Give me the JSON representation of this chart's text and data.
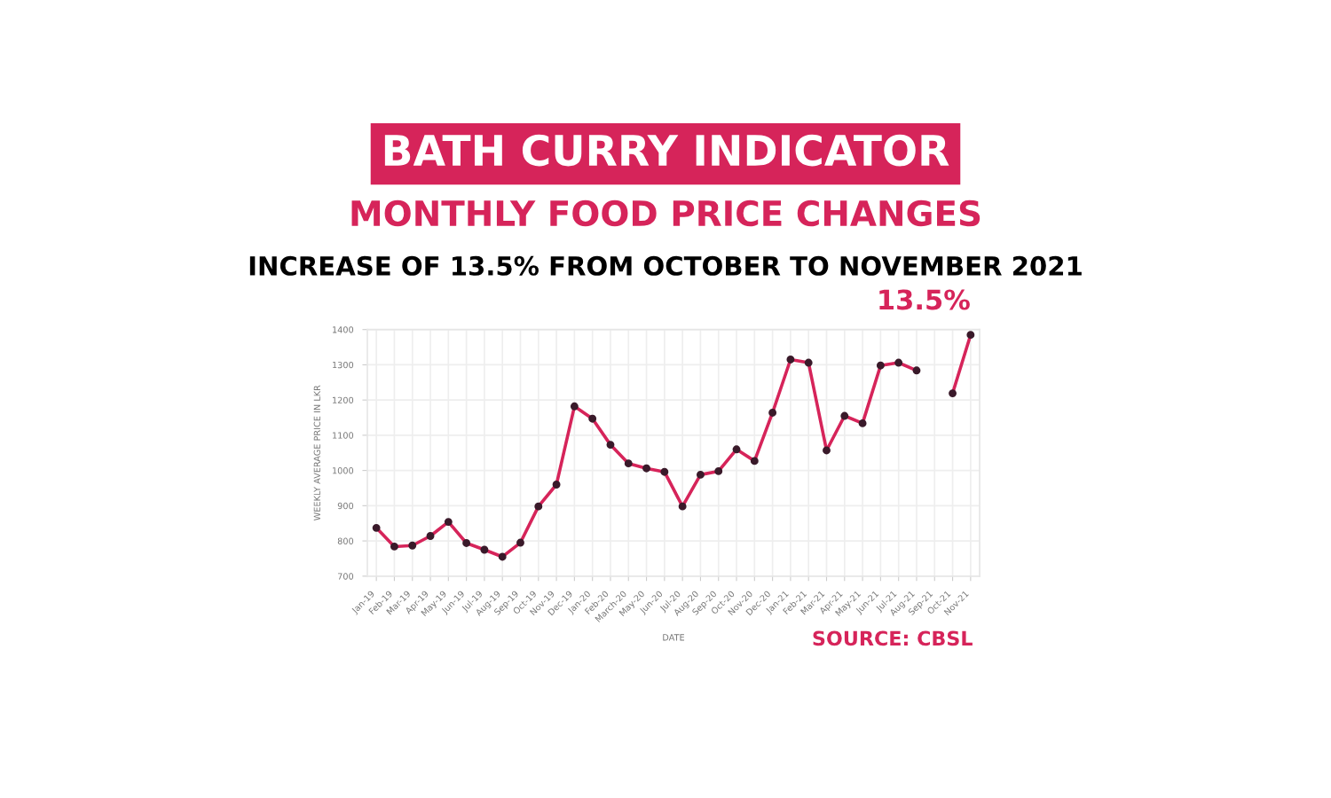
{
  "chart_data": {
    "type": "line",
    "title": "BATH CURRY INDICATOR",
    "subtitle": "MONTHLY FOOD PRICE CHANGES",
    "xlabel": "DATE",
    "ylabel": "WEEKLY AVERAGE PRICE IN LKR",
    "categories": [
      "Jan-19",
      "Feb-19",
      "Mar-19",
      "Apr-19",
      "May-19",
      "Jun-19",
      "Jul-19",
      "Aug-19",
      "Sep-19",
      "Oct-19",
      "Nov-19",
      "Dec-19",
      "Jan-20",
      "Feb-20",
      "March-20",
      "May-20",
      "Jun-20",
      "Jul-20",
      "Aug-20",
      "Sep-20",
      "Oct-20",
      "Nov-20",
      "Dec-20",
      "Jan-21",
      "Feb-21",
      "Mar-21",
      "Apr-21",
      "May-21",
      "Jun-21",
      "Jul-21",
      "Aug-21",
      "Sep-21",
      "Oct-21",
      "Nov-21"
    ],
    "series": [
      {
        "color": "#d6245a",
        "values": [
          837,
          784,
          787,
          814,
          854,
          794,
          775,
          755,
          795,
          898,
          960,
          1182,
          1147,
          1073,
          1020,
          1006,
          996,
          898,
          988,
          998,
          1060,
          1027,
          1164,
          1315,
          1306,
          1057,
          1155,
          1134,
          1298,
          1306,
          1284,
          null,
          1219,
          1385
        ]
      }
    ],
    "ylim": [
      700,
      1400
    ],
    "yticks": [
      700,
      800,
      900,
      1000,
      1100,
      1200,
      1300,
      1400
    ],
    "grid": true,
    "marker": "circle",
    "line_style": "solid",
    "legend": false,
    "annotations": [
      "INCREASE OF 13.5% FROM OCTOBER TO NOVEMBER 2021",
      "SOURCE: CBSL",
      {
        "text": "13.5%",
        "x": "Nov-21",
        "y": 1385
      }
    ]
  }
}
